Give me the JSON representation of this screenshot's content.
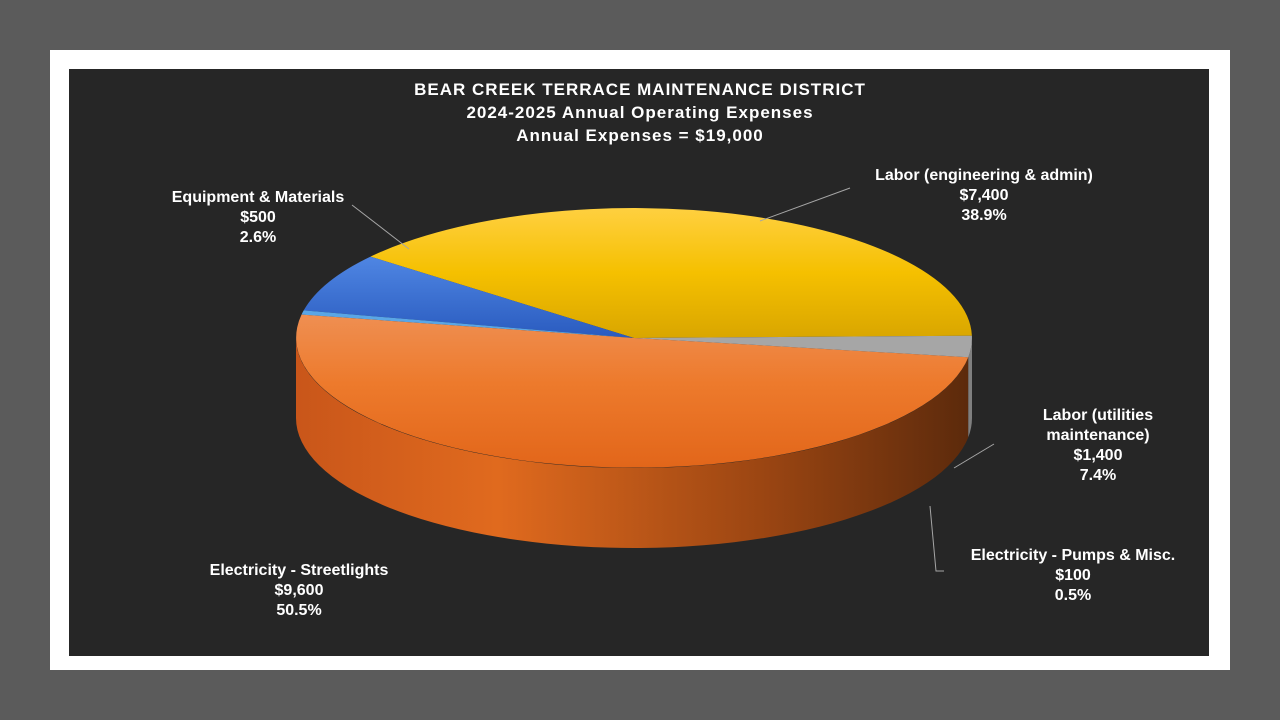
{
  "chart_data": {
    "type": "pie",
    "title_lines": [
      "BEAR CREEK TERRACE MAINTENANCE DISTRICT",
      "2024-2025 Annual Operating Expenses",
      "Annual Expenses = $19,000"
    ],
    "slices": [
      {
        "name": "Labor (engineering & admin)",
        "value_label": "$7,400",
        "value": 7400,
        "percent_label": "38.9%",
        "percent": 38.9,
        "color": "#f2b400"
      },
      {
        "name": "Labor (utilities maintenance)",
        "value_label": "$1,400",
        "value": 1400,
        "percent_label": "7.4%",
        "percent": 7.4,
        "color": "#3b6fd1"
      },
      {
        "name": "Electricity - Pumps & Misc.",
        "value_label": "$100",
        "value": 100,
        "percent_label": "0.5%",
        "percent": 0.5,
        "color": "#5aa6e6"
      },
      {
        "name": "Electricity - Streetlights",
        "value_label": "$9,600",
        "value": 9600,
        "percent_label": "50.5%",
        "percent": 50.5,
        "color": "#ea6e22"
      },
      {
        "name": "Equipment & Materials",
        "value_label": "$500",
        "value": 500,
        "percent_label": "2.6%",
        "percent": 2.6,
        "color": "#a6a6a6"
      }
    ],
    "label_lines": {
      "labor_utilities_name_1": "Labor (utilities",
      "labor_utilities_name_2": "maintenance)"
    }
  }
}
